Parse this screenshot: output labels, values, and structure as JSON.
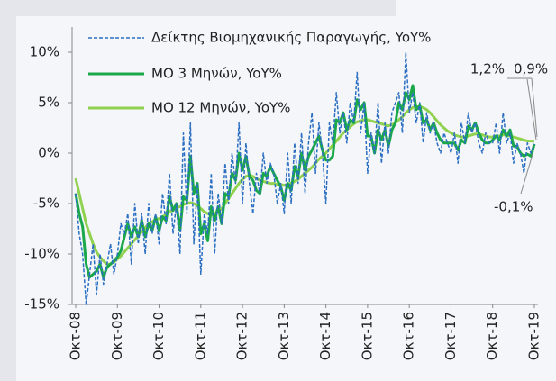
{
  "chart_data": {
    "type": "line",
    "categories": [
      "Οκτ-08",
      null,
      null,
      null,
      null,
      null,
      null,
      null,
      null,
      null,
      null,
      null,
      "Οκτ-09",
      null,
      null,
      null,
      null,
      null,
      null,
      null,
      null,
      null,
      null,
      null,
      "Οκτ-10",
      null,
      null,
      null,
      null,
      null,
      null,
      null,
      null,
      null,
      null,
      null,
      "Οκτ-11",
      null,
      null,
      null,
      null,
      null,
      null,
      null,
      null,
      null,
      null,
      null,
      "Οκτ-12",
      null,
      null,
      null,
      null,
      null,
      null,
      null,
      null,
      null,
      null,
      null,
      "Οκτ-13",
      null,
      null,
      null,
      null,
      null,
      null,
      null,
      null,
      null,
      null,
      null,
      "Οκτ-14",
      null,
      null,
      null,
      null,
      null,
      null,
      null,
      null,
      null,
      null,
      null,
      "Οκτ-15",
      null,
      null,
      null,
      null,
      null,
      null,
      null,
      null,
      null,
      null,
      null,
      "Οκτ-16",
      null,
      null,
      null,
      null,
      null,
      null,
      null,
      null,
      null,
      null,
      null,
      "Οκτ-17",
      null,
      null,
      null,
      null,
      null,
      null,
      null,
      null,
      null,
      null,
      null,
      "Οκτ-18",
      null,
      null,
      null,
      null,
      null,
      null,
      null,
      null,
      null,
      null,
      null,
      "Οκτ-19"
    ],
    "series": [
      {
        "name": "Δείκτης Βιομηχανικής Παραγωγής, YoY%",
        "color": "#2b6fc2",
        "dash": true,
        "width": 1.5,
        "values": [
          -4,
          -8,
          -10,
          -15,
          -12,
          -9,
          -14,
          -10,
          -13,
          -11,
          -9,
          -12,
          -10,
          -7,
          -8,
          -6,
          -11,
          -5,
          -9,
          -6,
          -10,
          -5,
          -8,
          -6,
          -9,
          -4,
          -7,
          -2,
          -8,
          -5,
          -10,
          2,
          -6,
          3,
          -9,
          -3,
          -12,
          -6,
          -8,
          -2,
          -10,
          -4,
          -7,
          -1,
          -5,
          0,
          -3,
          3,
          -5,
          1,
          -3,
          -6,
          -2,
          -4,
          0,
          -3,
          -1,
          -2,
          -5,
          -3,
          -6,
          0,
          -5,
          1,
          -3,
          2,
          -4,
          1,
          4,
          -2,
          3,
          0,
          -5,
          3,
          1,
          6,
          2,
          4,
          1,
          5,
          3,
          8,
          2,
          5,
          -2,
          2,
          0,
          5,
          -1,
          3,
          0,
          4,
          5,
          6,
          2,
          10,
          4,
          6,
          3,
          5,
          1,
          4,
          2,
          3,
          1,
          0,
          2,
          1,
          0,
          2,
          -1,
          3,
          1,
          4,
          2,
          3,
          1,
          0,
          2,
          1,
          1,
          3,
          0,
          4,
          1,
          2,
          -1,
          1,
          0,
          -2,
          1,
          0,
          0.9
        ]
      },
      {
        "name": "ΜΟ 3 Μηνών, YoY%",
        "color": "#1ba84b",
        "dash": false,
        "width": 3,
        "values": [
          -4,
          -6,
          -7.3,
          -11,
          -12.3,
          -12,
          -11.7,
          -11,
          -12.3,
          -11.3,
          -11,
          -10.7,
          -10.3,
          -9.7,
          -8.3,
          -7,
          -8.3,
          -7.3,
          -8.3,
          -6.7,
          -8.3,
          -7,
          -7.7,
          -6.3,
          -7.7,
          -6.3,
          -6.7,
          -4.3,
          -5.7,
          -5,
          -7.7,
          -4.3,
          -4.7,
          -0.3,
          -4,
          -3,
          -8,
          -7,
          -8.7,
          -5.3,
          -6.7,
          -5.3,
          -7,
          -4,
          -4.3,
          -2,
          -2.7,
          0,
          -1.7,
          -0.3,
          -2.3,
          -2.7,
          -3.7,
          -4,
          -2,
          -2.3,
          -1.3,
          -2,
          -2.7,
          -3.3,
          -4.7,
          -3,
          -3.7,
          -1.3,
          -2.3,
          0,
          -1.7,
          -0.3,
          0.3,
          1,
          1.7,
          0.3,
          -0.7,
          -0.7,
          -0.3,
          3.3,
          3,
          4,
          2.3,
          3.3,
          3,
          5.3,
          4.3,
          5,
          1.7,
          1.7,
          0,
          2.3,
          1.3,
          2.3,
          0.7,
          2.3,
          3,
          5,
          4.3,
          6,
          5.3,
          6.7,
          4.3,
          4.7,
          3,
          3.3,
          2.3,
          3,
          2,
          1.3,
          1,
          1,
          1,
          1,
          0.3,
          1.3,
          1,
          2.7,
          2.3,
          3,
          2,
          1.3,
          1,
          1,
          1.3,
          1.7,
          1.3,
          2.3,
          1.7,
          2.3,
          0.7,
          0.7,
          0,
          -0.3,
          -0.1,
          -0.3,
          0.9
        ]
      },
      {
        "name": "ΜΟ 12 Μηνών, YoY%",
        "color": "#90d250",
        "dash": false,
        "width": 3,
        "values": [
          -2.5,
          -4,
          -5.5,
          -7,
          -8,
          -9,
          -9.8,
          -10.3,
          -10.7,
          -11,
          -11,
          -10.8,
          -10.5,
          -10.2,
          -9.8,
          -9.4,
          -9,
          -8.6,
          -8.2,
          -7.8,
          -7.4,
          -7,
          -6.8,
          -6.6,
          -6.5,
          -6.3,
          -6.1,
          -5.8,
          -5.6,
          -5.4,
          -5.3,
          -5.1,
          -5,
          -4.9,
          -5,
          -5.2,
          -5.5,
          -5.8,
          -6,
          -6.1,
          -6,
          -5.8,
          -5.5,
          -5,
          -4.5,
          -4,
          -3.5,
          -3,
          -2.6,
          -2.3,
          -2.2,
          -2.3,
          -2.5,
          -2.7,
          -2.8,
          -2.9,
          -3,
          -3,
          -3.1,
          -3.1,
          -3.2,
          -3.1,
          -3,
          -2.8,
          -2.6,
          -2.3,
          -2,
          -1.7,
          -1.4,
          -1,
          -0.6,
          -0.3,
          0,
          0.4,
          0.8,
          1.2,
          1.6,
          2,
          2.3,
          2.6,
          2.9,
          3.1,
          3.2,
          3.3,
          3.3,
          3.2,
          3.1,
          3,
          2.9,
          2.8,
          2.7,
          2.8,
          3,
          3.3,
          3.6,
          4,
          4.3,
          4.5,
          4.6,
          4.6,
          4.5,
          4.3,
          4,
          3.6,
          3.2,
          2.8,
          2.5,
          2.2,
          2,
          1.8,
          1.7,
          1.6,
          1.6,
          1.7,
          1.8,
          1.9,
          1.9,
          1.8,
          1.7,
          1.6,
          1.6,
          1.7,
          1.7,
          1.8,
          1.8,
          1.7,
          1.6,
          1.5,
          1.4,
          1.3,
          1.2,
          1.2,
          1.2
        ]
      }
    ],
    "ylim": [
      -15,
      12.5
    ],
    "yticks": [
      {
        "value": -15,
        "label": "-15%"
      },
      {
        "value": -10,
        "label": "-10%"
      },
      {
        "value": -5,
        "label": "-5%"
      },
      {
        "value": 0,
        "label": "0%"
      },
      {
        "value": 5,
        "label": "5%"
      },
      {
        "value": 10,
        "label": "10%"
      }
    ],
    "annotations": [
      "1,2%",
      "0,9%",
      "-0,1%"
    ],
    "legend": "top-left"
  }
}
